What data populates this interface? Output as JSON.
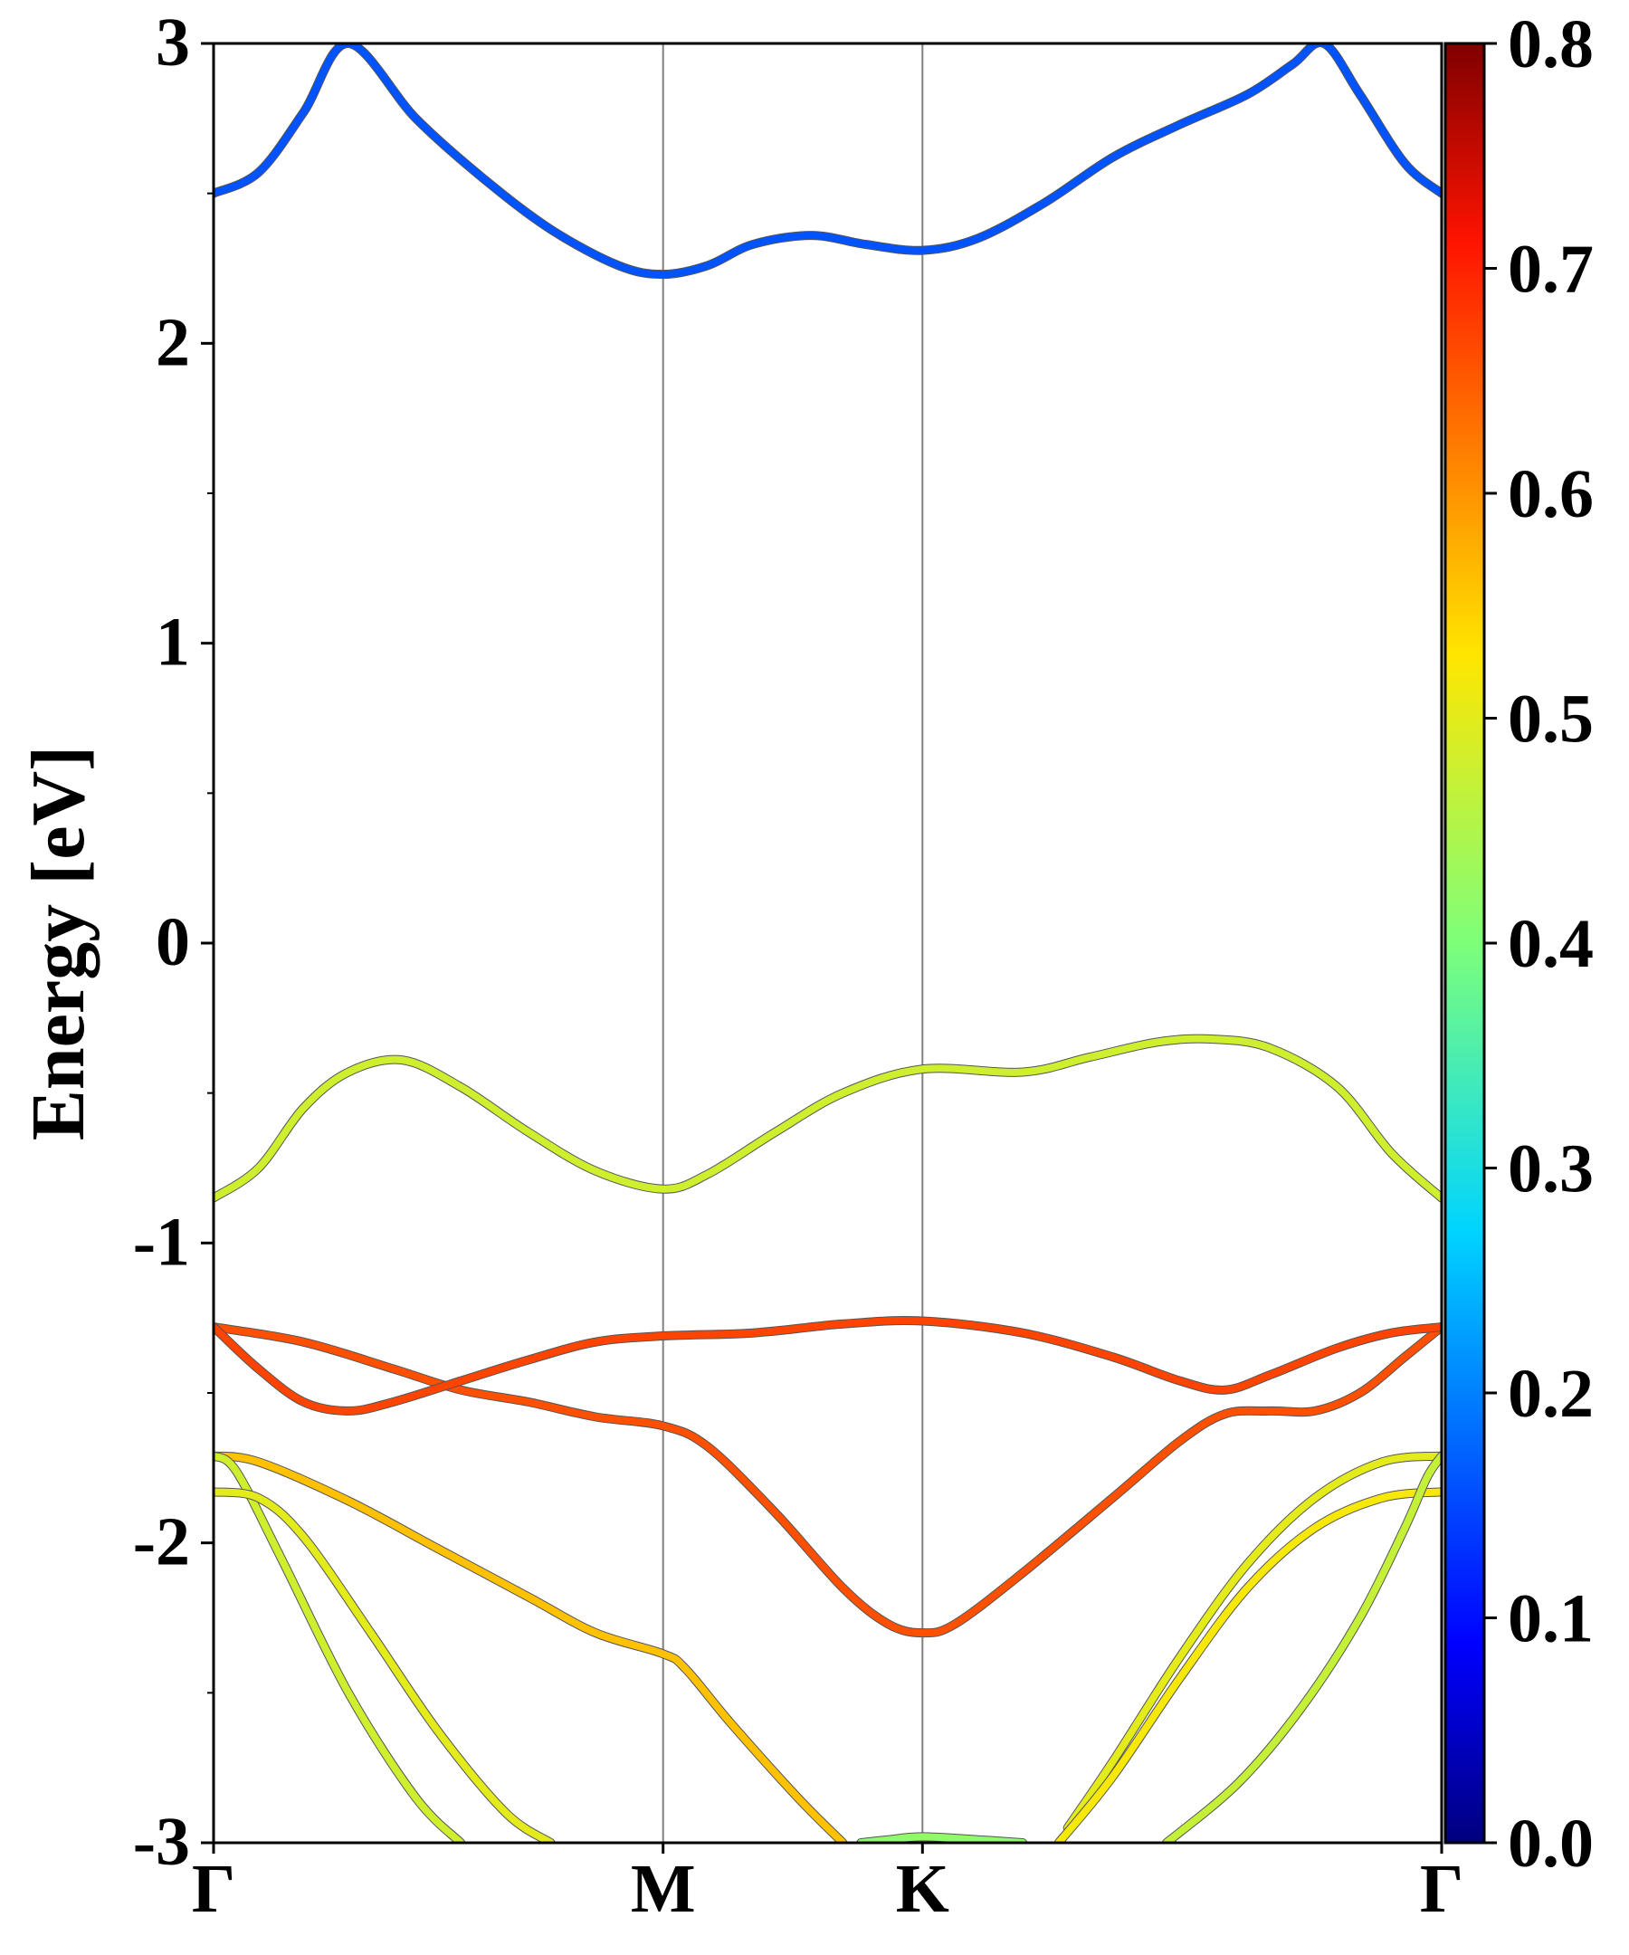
{
  "chart_data": {
    "type": "line",
    "title": "",
    "xlabel": "",
    "ylabel": "Energy [eV]",
    "ylim": [
      -3,
      3
    ],
    "x_kpath": [
      {
        "label": "Γ",
        "k": 0.0
      },
      {
        "label": "M",
        "k": 1.0
      },
      {
        "label": "K",
        "k": 1.577
      },
      {
        "label": "Γ",
        "k": 2.732
      }
    ],
    "y_ticks": [
      "3",
      "2",
      "1",
      "0",
      "-1",
      "-2",
      "-3"
    ],
    "y_tick_values": [
      3,
      2,
      1,
      0,
      -1,
      -2,
      -3
    ],
    "colorbar": {
      "colormap": "jet",
      "range": [
        0.0,
        0.8
      ],
      "ticks": [
        "0.8",
        "0.7",
        "0.6",
        "0.5",
        "0.4",
        "0.3",
        "0.2",
        "0.1",
        "0.0"
      ],
      "tick_values": [
        0.8,
        0.7,
        0.6,
        0.5,
        0.4,
        0.3,
        0.2,
        0.1,
        0.0
      ]
    },
    "series": [
      {
        "weight": 0.16,
        "points": [
          [
            0.0,
            2.5
          ],
          [
            0.1,
            2.57
          ],
          [
            0.2,
            2.77
          ],
          [
            0.3,
            3.0
          ],
          [
            0.45,
            2.75
          ],
          [
            0.6,
            2.55
          ],
          [
            0.75,
            2.38
          ],
          [
            0.9,
            2.26
          ],
          [
            1.0,
            2.23
          ],
          [
            1.1,
            2.26
          ],
          [
            1.2,
            2.33
          ],
          [
            1.33,
            2.36
          ],
          [
            1.45,
            2.33
          ],
          [
            1.577,
            2.31
          ],
          [
            1.7,
            2.35
          ],
          [
            1.85,
            2.47
          ],
          [
            2.0,
            2.62
          ],
          [
            2.15,
            2.73
          ],
          [
            2.3,
            2.83
          ],
          [
            2.4,
            2.93
          ],
          [
            2.47,
            3.0
          ],
          [
            2.55,
            2.83
          ],
          [
            2.65,
            2.6
          ],
          [
            2.732,
            2.5
          ]
        ]
      },
      {
        "weight": 0.48,
        "points": [
          [
            0.0,
            -0.85
          ],
          [
            0.1,
            -0.75
          ],
          [
            0.2,
            -0.55
          ],
          [
            0.3,
            -0.43
          ],
          [
            0.42,
            -0.39
          ],
          [
            0.55,
            -0.48
          ],
          [
            0.7,
            -0.63
          ],
          [
            0.85,
            -0.76
          ],
          [
            1.0,
            -0.82
          ],
          [
            1.1,
            -0.77
          ],
          [
            1.25,
            -0.63
          ],
          [
            1.4,
            -0.5
          ],
          [
            1.577,
            -0.42
          ],
          [
            1.8,
            -0.43
          ],
          [
            1.95,
            -0.38
          ],
          [
            2.1,
            -0.33
          ],
          [
            2.22,
            -0.32
          ],
          [
            2.35,
            -0.35
          ],
          [
            2.5,
            -0.48
          ],
          [
            2.62,
            -0.7
          ],
          [
            2.732,
            -0.85
          ]
        ]
      },
      {
        "weight": 0.66,
        "points": [
          [
            0.0,
            -1.28
          ],
          [
            0.2,
            -1.33
          ],
          [
            0.4,
            -1.42
          ],
          [
            0.55,
            -1.49
          ],
          [
            0.7,
            -1.53
          ],
          [
            0.85,
            -1.58
          ],
          [
            1.0,
            -1.61
          ],
          [
            1.1,
            -1.68
          ],
          [
            1.25,
            -1.9
          ],
          [
            1.4,
            -2.15
          ],
          [
            1.5,
            -2.27
          ],
          [
            1.577,
            -2.3
          ],
          [
            1.65,
            -2.27
          ],
          [
            1.8,
            -2.1
          ],
          [
            2.0,
            -1.85
          ],
          [
            2.15,
            -1.66
          ],
          [
            2.25,
            -1.57
          ],
          [
            2.35,
            -1.56
          ],
          [
            2.45,
            -1.56
          ],
          [
            2.55,
            -1.5
          ],
          [
            2.65,
            -1.38
          ],
          [
            2.732,
            -1.28
          ]
        ]
      },
      {
        "weight": 0.67,
        "points": [
          [
            0.0,
            -1.28
          ],
          [
            0.1,
            -1.42
          ],
          [
            0.2,
            -1.53
          ],
          [
            0.3,
            -1.56
          ],
          [
            0.4,
            -1.53
          ],
          [
            0.55,
            -1.46
          ],
          [
            0.7,
            -1.39
          ],
          [
            0.85,
            -1.33
          ],
          [
            1.0,
            -1.31
          ],
          [
            1.2,
            -1.3
          ],
          [
            1.4,
            -1.27
          ],
          [
            1.577,
            -1.26
          ],
          [
            1.8,
            -1.3
          ],
          [
            2.0,
            -1.38
          ],
          [
            2.15,
            -1.46
          ],
          [
            2.25,
            -1.49
          ],
          [
            2.35,
            -1.44
          ],
          [
            2.5,
            -1.35
          ],
          [
            2.62,
            -1.3
          ],
          [
            2.732,
            -1.28
          ]
        ]
      },
      {
        "weight": 0.56,
        "points": [
          [
            0.0,
            -1.71
          ],
          [
            0.1,
            -1.73
          ],
          [
            0.3,
            -1.86
          ],
          [
            0.5,
            -2.02
          ],
          [
            0.7,
            -2.18
          ],
          [
            0.85,
            -2.3
          ],
          [
            1.0,
            -2.37
          ],
          [
            1.05,
            -2.42
          ],
          [
            1.15,
            -2.6
          ],
          [
            1.3,
            -2.85
          ],
          [
            1.4,
            -3.0
          ]
        ]
      },
      {
        "weight": 0.48,
        "points": [
          [
            0.0,
            -1.71
          ],
          [
            0.05,
            -1.76
          ],
          [
            0.15,
            -2.05
          ],
          [
            0.3,
            -2.5
          ],
          [
            0.45,
            -2.85
          ],
          [
            0.55,
            -3.0
          ]
        ]
      },
      {
        "weight": 0.5,
        "points": [
          [
            0.0,
            -1.83
          ],
          [
            0.1,
            -1.85
          ],
          [
            0.2,
            -1.98
          ],
          [
            0.35,
            -2.3
          ],
          [
            0.5,
            -2.63
          ],
          [
            0.65,
            -2.9
          ],
          [
            0.75,
            -3.0
          ]
        ]
      },
      {
        "weight": 0.42,
        "points": [
          [
            1.44,
            -3.0
          ],
          [
            1.5,
            -2.99
          ],
          [
            1.577,
            -2.98
          ],
          [
            1.7,
            -2.99
          ],
          [
            1.8,
            -3.0
          ]
        ]
      },
      {
        "weight": 0.5,
        "points": [
          [
            1.9,
            -2.95
          ],
          [
            2.0,
            -2.73
          ],
          [
            2.15,
            -2.38
          ],
          [
            2.3,
            -2.07
          ],
          [
            2.45,
            -1.85
          ],
          [
            2.6,
            -1.73
          ],
          [
            2.732,
            -1.71
          ]
        ]
      },
      {
        "weight": 0.52,
        "points": [
          [
            1.88,
            -3.0
          ],
          [
            2.0,
            -2.78
          ],
          [
            2.15,
            -2.45
          ],
          [
            2.3,
            -2.15
          ],
          [
            2.45,
            -1.95
          ],
          [
            2.6,
            -1.85
          ],
          [
            2.732,
            -1.83
          ]
        ]
      },
      {
        "weight": 0.47,
        "points": [
          [
            2.12,
            -3.0
          ],
          [
            2.28,
            -2.8
          ],
          [
            2.42,
            -2.55
          ],
          [
            2.55,
            -2.25
          ],
          [
            2.65,
            -1.95
          ],
          [
            2.7,
            -1.78
          ],
          [
            2.732,
            -1.71
          ]
        ]
      }
    ]
  }
}
